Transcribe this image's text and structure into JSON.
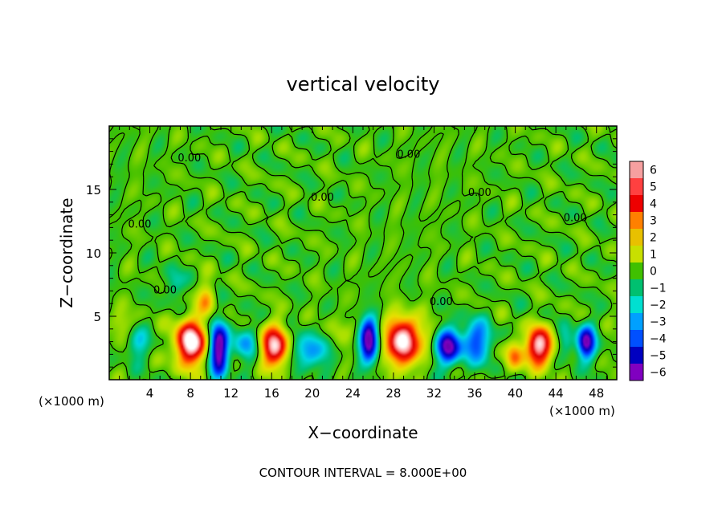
{
  "chart_data": {
    "type": "heatmap",
    "title": "vertical velocity",
    "xlabel": "X−coordinate",
    "ylabel": "Z−coordinate",
    "x_unit_left": "(×1000 m)",
    "x_unit_right": "(×1000 m)",
    "footer": "CONTOUR INTERVAL = 8.000E+00",
    "xlim": [
      0,
      50
    ],
    "ylim": [
      0,
      20
    ],
    "x_ticks": [
      {
        "value": 4,
        "label": "4"
      },
      {
        "value": 8,
        "label": "8"
      },
      {
        "value": 12,
        "label": "12"
      },
      {
        "value": 16,
        "label": "16"
      },
      {
        "value": 20,
        "label": "20"
      },
      {
        "value": 24,
        "label": "24"
      },
      {
        "value": 28,
        "label": "28"
      },
      {
        "value": 32,
        "label": "32"
      },
      {
        "value": 36,
        "label": "36"
      },
      {
        "value": 40,
        "label": "40"
      },
      {
        "value": 44,
        "label": "44"
      },
      {
        "value": 48,
        "label": "48"
      }
    ],
    "y_ticks": [
      {
        "value": 5,
        "label": "5"
      },
      {
        "value": 10,
        "label": "10"
      },
      {
        "value": 15,
        "label": "15"
      }
    ],
    "colorbar": {
      "levels": [
        "6",
        "5",
        "4",
        "3",
        "2",
        "1",
        "0",
        "−1",
        "−2",
        "−3",
        "−4",
        "−5",
        "−6"
      ],
      "colors": [
        "#f6a0a0",
        "#ff4040",
        "#ee0000",
        "#ff8000",
        "#e8c000",
        "#c8e000",
        "#40c000",
        "#00c070",
        "#00e0d0",
        "#00a0ff",
        "#0050ff",
        "#0000c0",
        "#8000c0"
      ]
    },
    "contour_label": "0.00",
    "contour_label_positions": [
      {
        "x": 7.9,
        "z": 17.2
      },
      {
        "x": 3.0,
        "z": 12.0
      },
      {
        "x": 5.5,
        "z": 6.8
      },
      {
        "x": 21.0,
        "z": 14.1
      },
      {
        "x": 29.5,
        "z": 17.5
      },
      {
        "x": 36.5,
        "z": 14.5
      },
      {
        "x": 32.7,
        "z": 5.9
      },
      {
        "x": 45.9,
        "z": 12.5
      }
    ],
    "features": [
      {
        "x": 8.0,
        "z": 2.9,
        "sx": 1.5,
        "sz": 1.8,
        "amp": 7.5
      },
      {
        "x": 10.8,
        "z": 2.4,
        "sx": 0.9,
        "sz": 2.0,
        "amp": -7.0
      },
      {
        "x": 9.6,
        "z": 6.3,
        "sx": 0.9,
        "sz": 1.4,
        "amp": 2.5
      },
      {
        "x": 16.3,
        "z": 2.6,
        "sx": 1.4,
        "sz": 1.6,
        "amp": 6.5
      },
      {
        "x": 13.4,
        "z": 2.8,
        "sx": 1.3,
        "sz": 1.4,
        "amp": -2.5
      },
      {
        "x": 19.8,
        "z": 2.3,
        "sx": 1.8,
        "sz": 1.3,
        "amp": -3.2
      },
      {
        "x": 25.6,
        "z": 3.1,
        "sx": 0.9,
        "sz": 1.7,
        "amp": -6.5
      },
      {
        "x": 28.9,
        "z": 3.0,
        "sx": 1.6,
        "sz": 1.9,
        "amp": 7.5
      },
      {
        "x": 33.4,
        "z": 2.6,
        "sx": 1.2,
        "sz": 1.4,
        "amp": -6.0
      },
      {
        "x": 36.2,
        "z": 3.0,
        "sx": 1.5,
        "sz": 1.6,
        "amp": -3.8
      },
      {
        "x": 39.9,
        "z": 1.9,
        "sx": 0.9,
        "sz": 1.3,
        "amp": 3.2
      },
      {
        "x": 42.4,
        "z": 2.6,
        "sx": 1.3,
        "sz": 1.5,
        "amp": 6.8
      },
      {
        "x": 47.0,
        "z": 2.9,
        "sx": 0.9,
        "sz": 1.3,
        "amp": -6.0
      },
      {
        "x": 45.0,
        "z": 3.0,
        "sx": 0.8,
        "sz": 1.1,
        "amp": -2.0
      },
      {
        "x": 2.9,
        "z": 2.8,
        "sx": 1.1,
        "sz": 1.2,
        "amp": -2.0
      },
      {
        "x": 1.2,
        "z": 4.5,
        "sx": 1.2,
        "sz": 1.0,
        "amp": 1.3
      },
      {
        "x": 6.4,
        "z": 7.6,
        "sx": 1.0,
        "sz": 1.2,
        "amp": -1.6
      },
      {
        "x": 22.4,
        "z": 3.7,
        "sx": 1.2,
        "sz": 1.2,
        "amp": 1.2
      },
      {
        "x": 31.5,
        "z": 3.5,
        "sx": 1.0,
        "sz": 1.4,
        "amp": 1.0
      }
    ]
  }
}
